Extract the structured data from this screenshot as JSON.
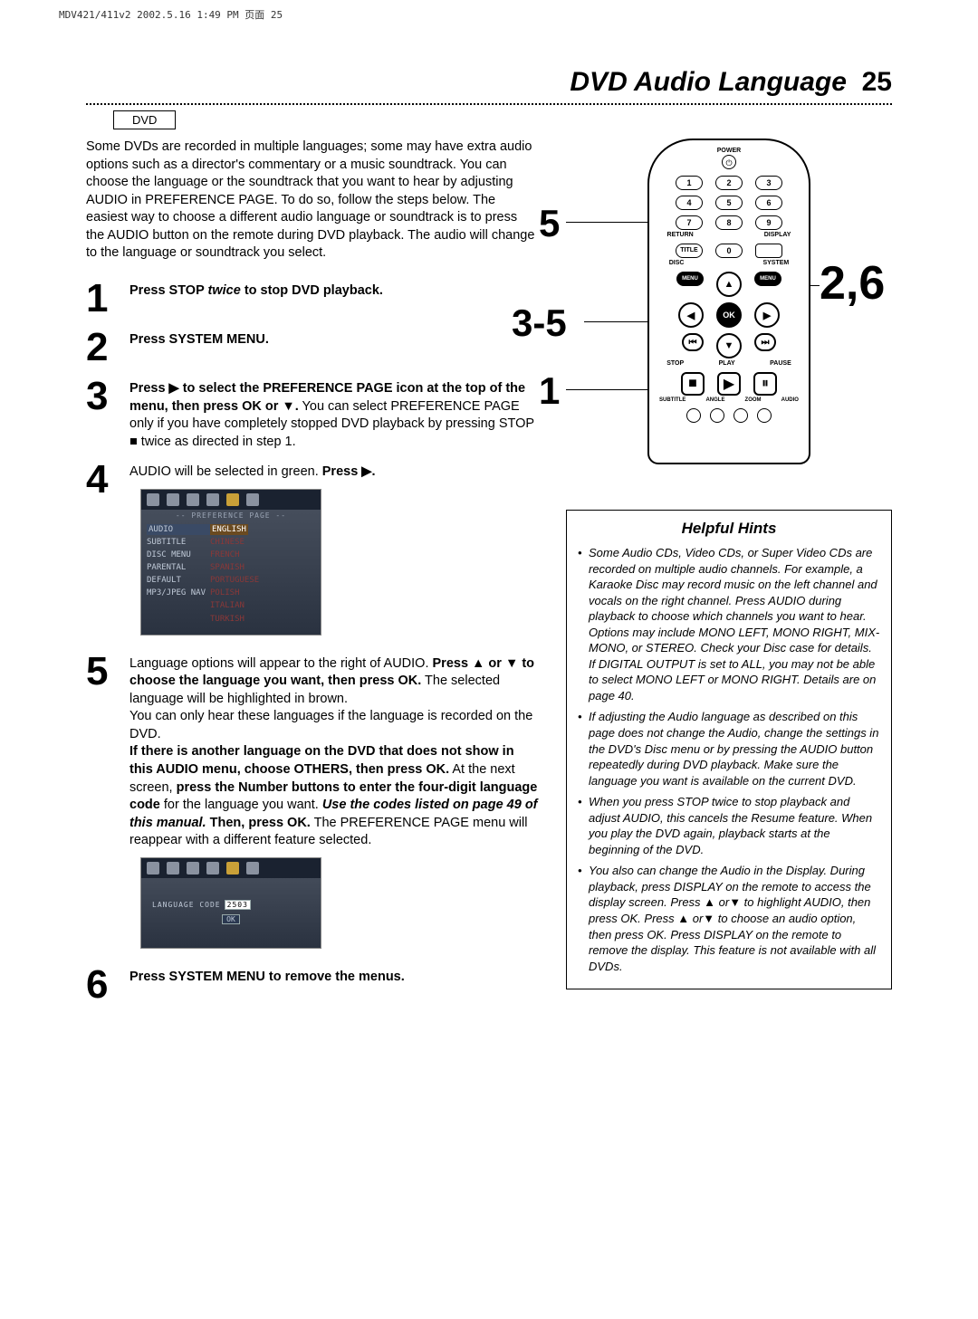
{
  "print_header": "MDV421/411v2  2002.5.16  1:49 PM  页面 25",
  "title": "DVD Audio Language",
  "page_number": "25",
  "badge": "DVD",
  "intro": "Some DVDs are recorded in multiple languages; some may have extra audio options such as a director's commentary or a music soundtrack. You can choose the language or the soundtrack that you want to hear by adjusting AUDIO in PREFERENCE PAGE.  To do so, follow the steps below. The easiest way to choose a different audio language or soundtrack is to press the AUDIO button on the remote during DVD playback. The audio will change to the language or soundtrack you select.",
  "steps": {
    "s1": "Press STOP <i>twice</i> to stop DVD playback.",
    "s2": "Press SYSTEM MENU.",
    "s3a": "Press ▶ to select the PREFERENCE PAGE icon at the top of the menu, then press OK or ▼.",
    "s3b": " You can select PREFERENCE PAGE only if you have completely stopped DVD playback by pressing STOP ■ twice as directed in step 1.",
    "s4a": "AUDIO will be selected in green. ",
    "s4b": "Press ▶.",
    "s5a": "Language options will appear to the right of AUDIO. ",
    "s5b": "Press ▲ or ▼ to choose the language you want, then press OK.",
    "s5c": " The selected language will be highlighted in brown.",
    "s5d": "You can only hear these languages if the language is recorded on the DVD.",
    "s5e": "If there is another language on the DVD that does not show in this AUDIO menu, choose OTHERS, then press OK.",
    "s5f": " At the next screen, ",
    "s5g": "press the Number buttons to enter the four-digit language code",
    "s5h": " for the language you want. ",
    "s5i": "Use the codes listed on page 49 of this manual.",
    "s5j": " Then, press OK.",
    "s5k": " The PREFERENCE PAGE menu will reappear with a different feature selected.",
    "s6": "Press SYSTEM MENU to remove the menus."
  },
  "osd": {
    "header": "-- PREFERENCE PAGE --",
    "items": [
      {
        "l": "AUDIO",
        "r": "ENGLISH",
        "sel": true
      },
      {
        "l": "SUBTITLE",
        "r": "CHINESE"
      },
      {
        "l": "DISC MENU",
        "r": "FRENCH"
      },
      {
        "l": "PARENTAL",
        "r": "SPANISH"
      },
      {
        "l": "DEFAULT",
        "r": "PORTUGUESE"
      },
      {
        "l": "MP3/JPEG NAV",
        "r": "POLISH"
      },
      {
        "l": "",
        "r": "ITALIAN"
      },
      {
        "l": "",
        "r": "TURKISH"
      }
    ],
    "code_label": "LANGUAGE CODE",
    "code_value": "2503",
    "ok": "OK"
  },
  "remote": {
    "power": "POWER",
    "return": "RETURN",
    "display": "DISPLAY",
    "title": "TITLE",
    "disc": "DISC",
    "system": "SYSTEM",
    "menu_l": "MENU",
    "menu_r": "MENU",
    "ok": "OK",
    "stop": "STOP",
    "play": "PLAY",
    "pause": "PAUSE",
    "bottom": [
      "SUBTITLE",
      "ANGLE",
      "ZOOM",
      "AUDIO"
    ],
    "callouts": {
      "c5": "5",
      "c35": "3-5",
      "c1": "1",
      "c26": "2,6"
    }
  },
  "hints": {
    "title": "Helpful Hints",
    "items": [
      "Some Audio CDs, Video CDs, or Super Video CDs are recorded on multiple audio channels. For example, a Karaoke Disc may record music on the left channel and vocals on the right channel. Press AUDIO during playback to choose which channels you want to hear. Options may include MONO LEFT, MONO RIGHT, MIX-MONO, or STEREO. Check your Disc case for details. If DIGITAL OUTPUT is set to ALL, you may not be able to select MONO LEFT or MONO RIGHT. Details are on page 40.",
      "If adjusting the Audio language as described on this page does not change the Audio, change the settings in the DVD's Disc menu or by pressing the AUDIO button repeatedly during DVD playback. Make sure the language you want is available on the current DVD.",
      "When you press STOP twice to stop playback and adjust AUDIO, this cancels the Resume feature. When you play the DVD again, playback starts at the beginning of the DVD.",
      "You also can change the Audio in the Display. During playback, press DISPLAY on the remote to access the display screen. Press ▲ or▼  to highlight AUDIO, then press OK. Press ▲ or▼ to choose an audio option, then press OK. Press DISPLAY on the remote to remove the display.  This feature is not available with all DVDs."
    ]
  }
}
